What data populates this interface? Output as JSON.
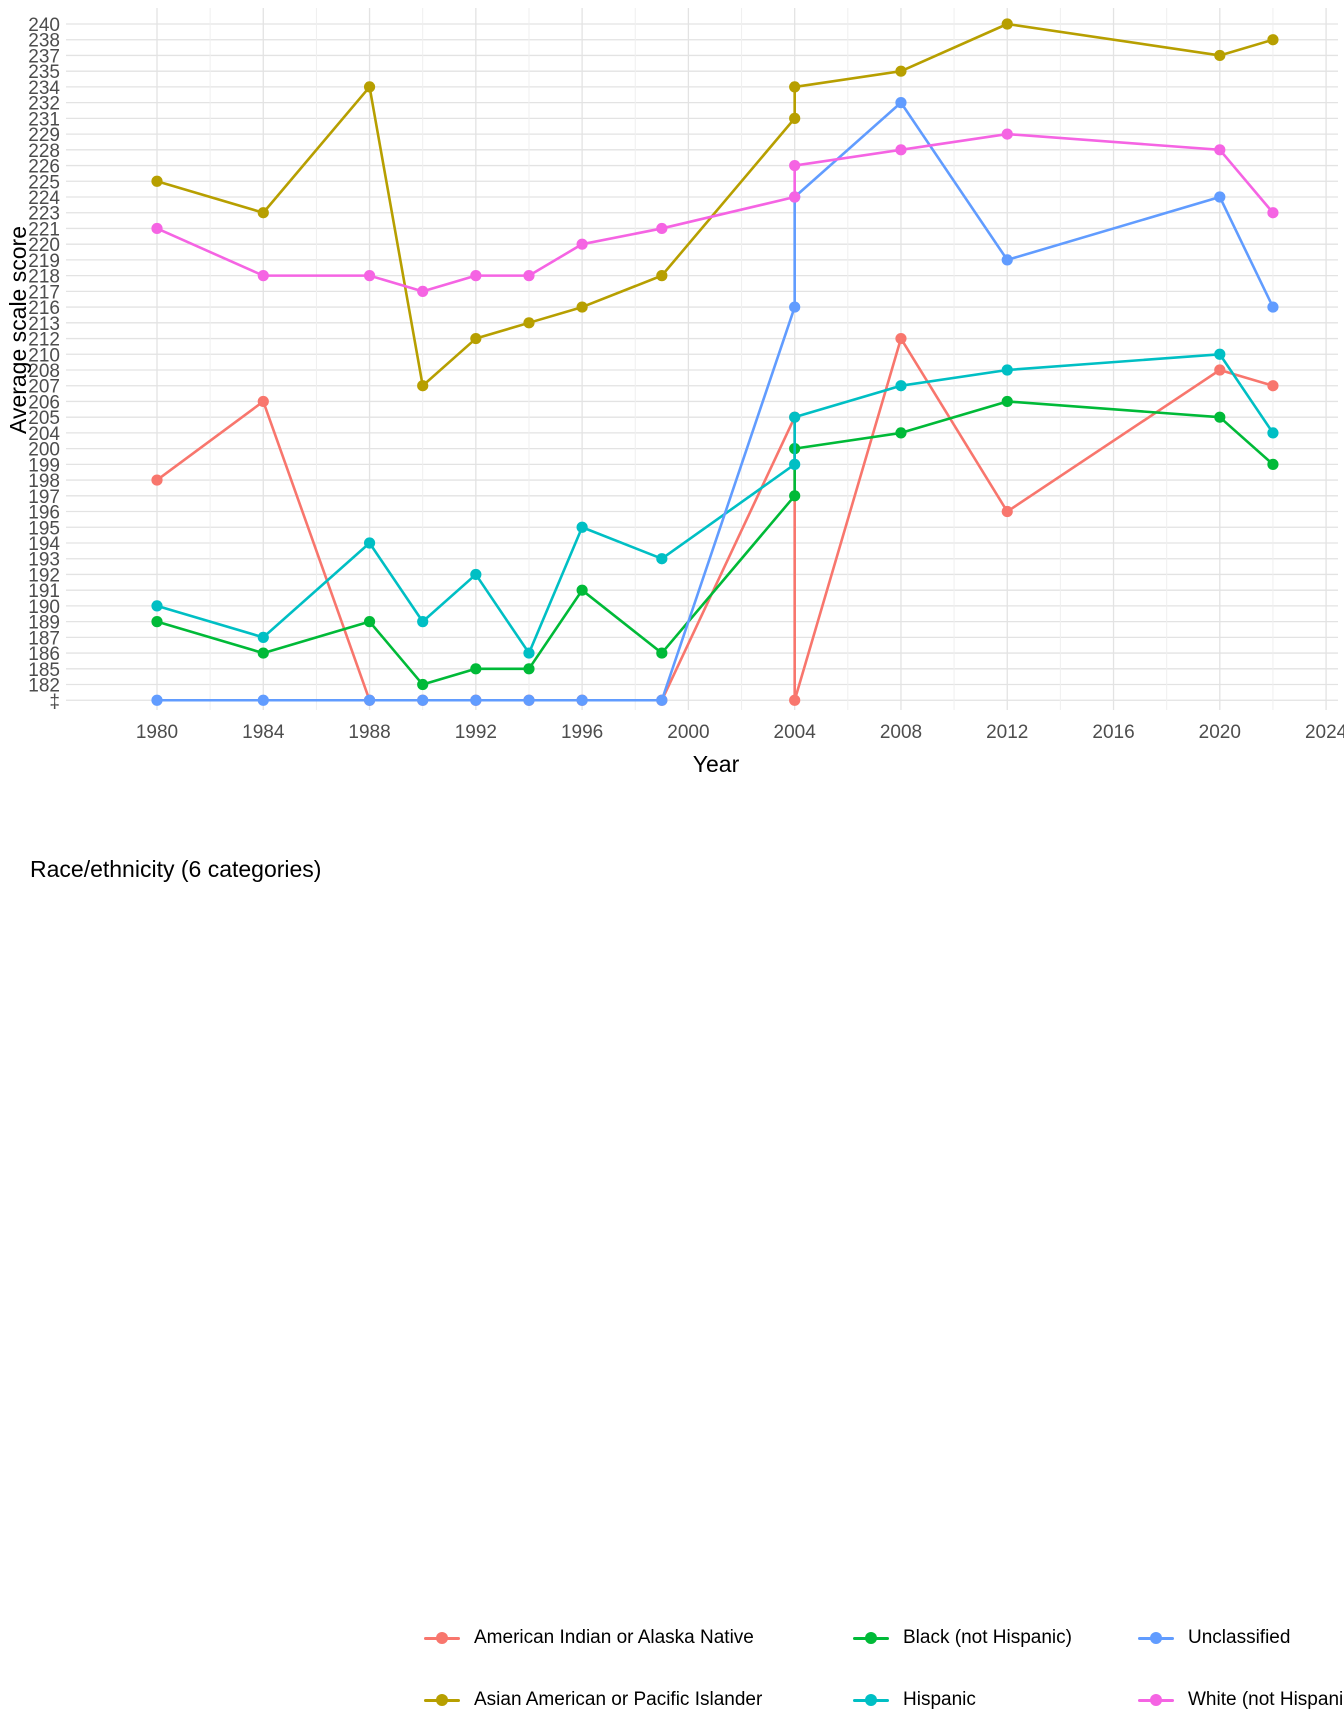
{
  "axes": {
    "x_label": "Year",
    "y_label": "Average scale score",
    "x_ticks": [
      1980,
      1984,
      1988,
      1992,
      1996,
      2000,
      2004,
      2008,
      2012,
      2016,
      2020,
      2024
    ],
    "y_breaks_top_to_bottom": [
      "240",
      "238",
      "237",
      "235",
      "234",
      "232",
      "231",
      "229",
      "228",
      "226",
      "225",
      "224",
      "223",
      "221",
      "220",
      "219",
      "218",
      "217",
      "216",
      "213",
      "212",
      "210",
      "208",
      "207",
      "206",
      "205",
      "204",
      "200",
      "199",
      "198",
      "197",
      "196",
      "195",
      "194",
      "193",
      "192",
      "191",
      "190",
      "189",
      "187",
      "186",
      "185",
      "182",
      "‡"
    ],
    "suppressed_symbol": "‡"
  },
  "legend": {
    "title": "Race/ethnicity (6 categories)",
    "items": [
      {
        "label": "American Indian or Alaska Native",
        "color": "#F8766D"
      },
      {
        "label": "Asian American or Pacific Islander",
        "color": "#B79F00"
      },
      {
        "label": "Black (not Hispanic)",
        "color": "#00BA38"
      },
      {
        "label": "Hispanic",
        "color": "#00BFC4"
      },
      {
        "label": "Unclassified",
        "color": "#619CFF"
      },
      {
        "label": "White (not Hispanic)",
        "color": "#F564E3"
      }
    ]
  },
  "chart_data": {
    "type": "line",
    "title": "",
    "xlabel": "Year",
    "ylabel": "Average scale score",
    "x_years_with_data": [
      1980,
      1984,
      1988,
      1990,
      1992,
      1994,
      1996,
      1999,
      2004,
      2008,
      2012,
      2020,
      2022
    ],
    "note_2004": "two assessments plotted at 2004 (original then revised format)",
    "series": [
      {
        "name": "American Indian or Alaska Native",
        "color": "#F8766D",
        "points": [
          [
            1980,
            198
          ],
          [
            1984,
            206
          ],
          [
            1988,
            "‡"
          ],
          [
            1990,
            "‡"
          ],
          [
            1992,
            "‡"
          ],
          [
            1994,
            "‡"
          ],
          [
            1996,
            "‡"
          ],
          [
            1999,
            "‡"
          ],
          [
            2004,
            205
          ],
          [
            2004,
            "‡"
          ],
          [
            2008,
            212
          ],
          [
            2012,
            196
          ],
          [
            2020,
            208
          ],
          [
            2022,
            207
          ]
        ]
      },
      {
        "name": "Asian American or Pacific Islander",
        "color": "#B79F00",
        "points": [
          [
            1980,
            225
          ],
          [
            1984,
            223
          ],
          [
            1988,
            234
          ],
          [
            1990,
            207
          ],
          [
            1992,
            212
          ],
          [
            1994,
            213
          ],
          [
            1996,
            216
          ],
          [
            1999,
            218
          ],
          [
            2004,
            231
          ],
          [
            2004,
            234
          ],
          [
            2008,
            235
          ],
          [
            2012,
            240
          ],
          [
            2020,
            237
          ],
          [
            2022,
            238
          ]
        ]
      },
      {
        "name": "Black (not Hispanic)",
        "color": "#00BA38",
        "points": [
          [
            1980,
            189
          ],
          [
            1984,
            186
          ],
          [
            1988,
            189
          ],
          [
            1990,
            182
          ],
          [
            1992,
            185
          ],
          [
            1994,
            185
          ],
          [
            1996,
            191
          ],
          [
            1999,
            186
          ],
          [
            2004,
            197
          ],
          [
            2004,
            200
          ],
          [
            2008,
            204
          ],
          [
            2012,
            206
          ],
          [
            2020,
            205
          ],
          [
            2022,
            199
          ]
        ]
      },
      {
        "name": "Hispanic",
        "color": "#00BFC4",
        "points": [
          [
            1980,
            190
          ],
          [
            1984,
            187
          ],
          [
            1988,
            194
          ],
          [
            1990,
            189
          ],
          [
            1992,
            192
          ],
          [
            1994,
            186
          ],
          [
            1996,
            195
          ],
          [
            1999,
            193
          ],
          [
            2004,
            199
          ],
          [
            2004,
            205
          ],
          [
            2008,
            207
          ],
          [
            2012,
            208
          ],
          [
            2020,
            210
          ],
          [
            2022,
            204
          ]
        ]
      },
      {
        "name": "Unclassified",
        "color": "#619CFF",
        "points": [
          [
            1980,
            "‡"
          ],
          [
            1984,
            "‡"
          ],
          [
            1988,
            "‡"
          ],
          [
            1990,
            "‡"
          ],
          [
            1992,
            "‡"
          ],
          [
            1994,
            "‡"
          ],
          [
            1996,
            "‡"
          ],
          [
            1999,
            "‡"
          ],
          [
            2004,
            216
          ],
          [
            2004,
            224
          ],
          [
            2008,
            232
          ],
          [
            2012,
            219
          ],
          [
            2020,
            224
          ],
          [
            2022,
            216
          ]
        ]
      },
      {
        "name": "White (not Hispanic)",
        "color": "#F564E3",
        "points": [
          [
            1980,
            221
          ],
          [
            1984,
            218
          ],
          [
            1988,
            218
          ],
          [
            1990,
            217
          ],
          [
            1992,
            218
          ],
          [
            1994,
            218
          ],
          [
            1996,
            220
          ],
          [
            1999,
            221
          ],
          [
            2004,
            224
          ],
          [
            2004,
            226
          ],
          [
            2008,
            228
          ],
          [
            2012,
            229
          ],
          [
            2020,
            228
          ],
          [
            2022,
            223
          ]
        ]
      }
    ],
    "ylim_breaks": "discrete axis: one evenly spaced gridline per listed break, ‡ row at bottom",
    "grid": true,
    "legend_position": "bottom"
  },
  "style": {
    "grid_major_color": "#e3e3e3",
    "grid_minor_color": "#efefef",
    "background": "#ffffff"
  }
}
